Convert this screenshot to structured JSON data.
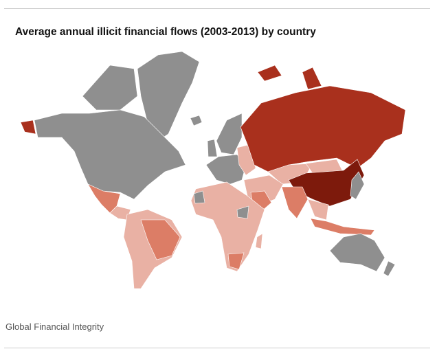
{
  "header": {
    "title": "Average annual illicit financial flows (2003-2013) by country"
  },
  "footer": {
    "source": "Global Financial Integrity"
  }
}
